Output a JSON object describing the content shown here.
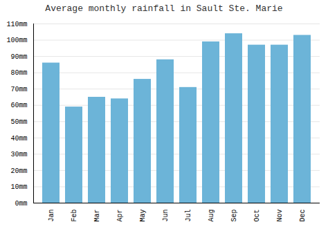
{
  "chart_data": {
    "type": "bar",
    "title": "Average monthly rainfall in Sault Ste. Marie",
    "categories": [
      "Jan",
      "Feb",
      "Mar",
      "Apr",
      "May",
      "Jun",
      "Jul",
      "Aug",
      "Sep",
      "Oct",
      "Nov",
      "Dec"
    ],
    "values": [
      86,
      59,
      65,
      64,
      76,
      88,
      71,
      99,
      104,
      97,
      97,
      103
    ],
    "color": "#6cb4d8",
    "ylim": [
      0,
      110
    ],
    "yticks": [
      {
        "value": 0,
        "label": "0mm"
      },
      {
        "value": 10,
        "label": "10mm"
      },
      {
        "value": 20,
        "label": "20mm"
      },
      {
        "value": 30,
        "label": "30mm"
      },
      {
        "value": 40,
        "label": "40mm"
      },
      {
        "value": 50,
        "label": "50mm"
      },
      {
        "value": 60,
        "label": "60mm"
      },
      {
        "value": 70,
        "label": "70mm"
      },
      {
        "value": 80,
        "label": "80mm"
      },
      {
        "value": 90,
        "label": "90mm"
      },
      {
        "value": 100,
        "label": "100mm"
      },
      {
        "value": 110,
        "label": "110mm"
      }
    ],
    "grid": true
  }
}
